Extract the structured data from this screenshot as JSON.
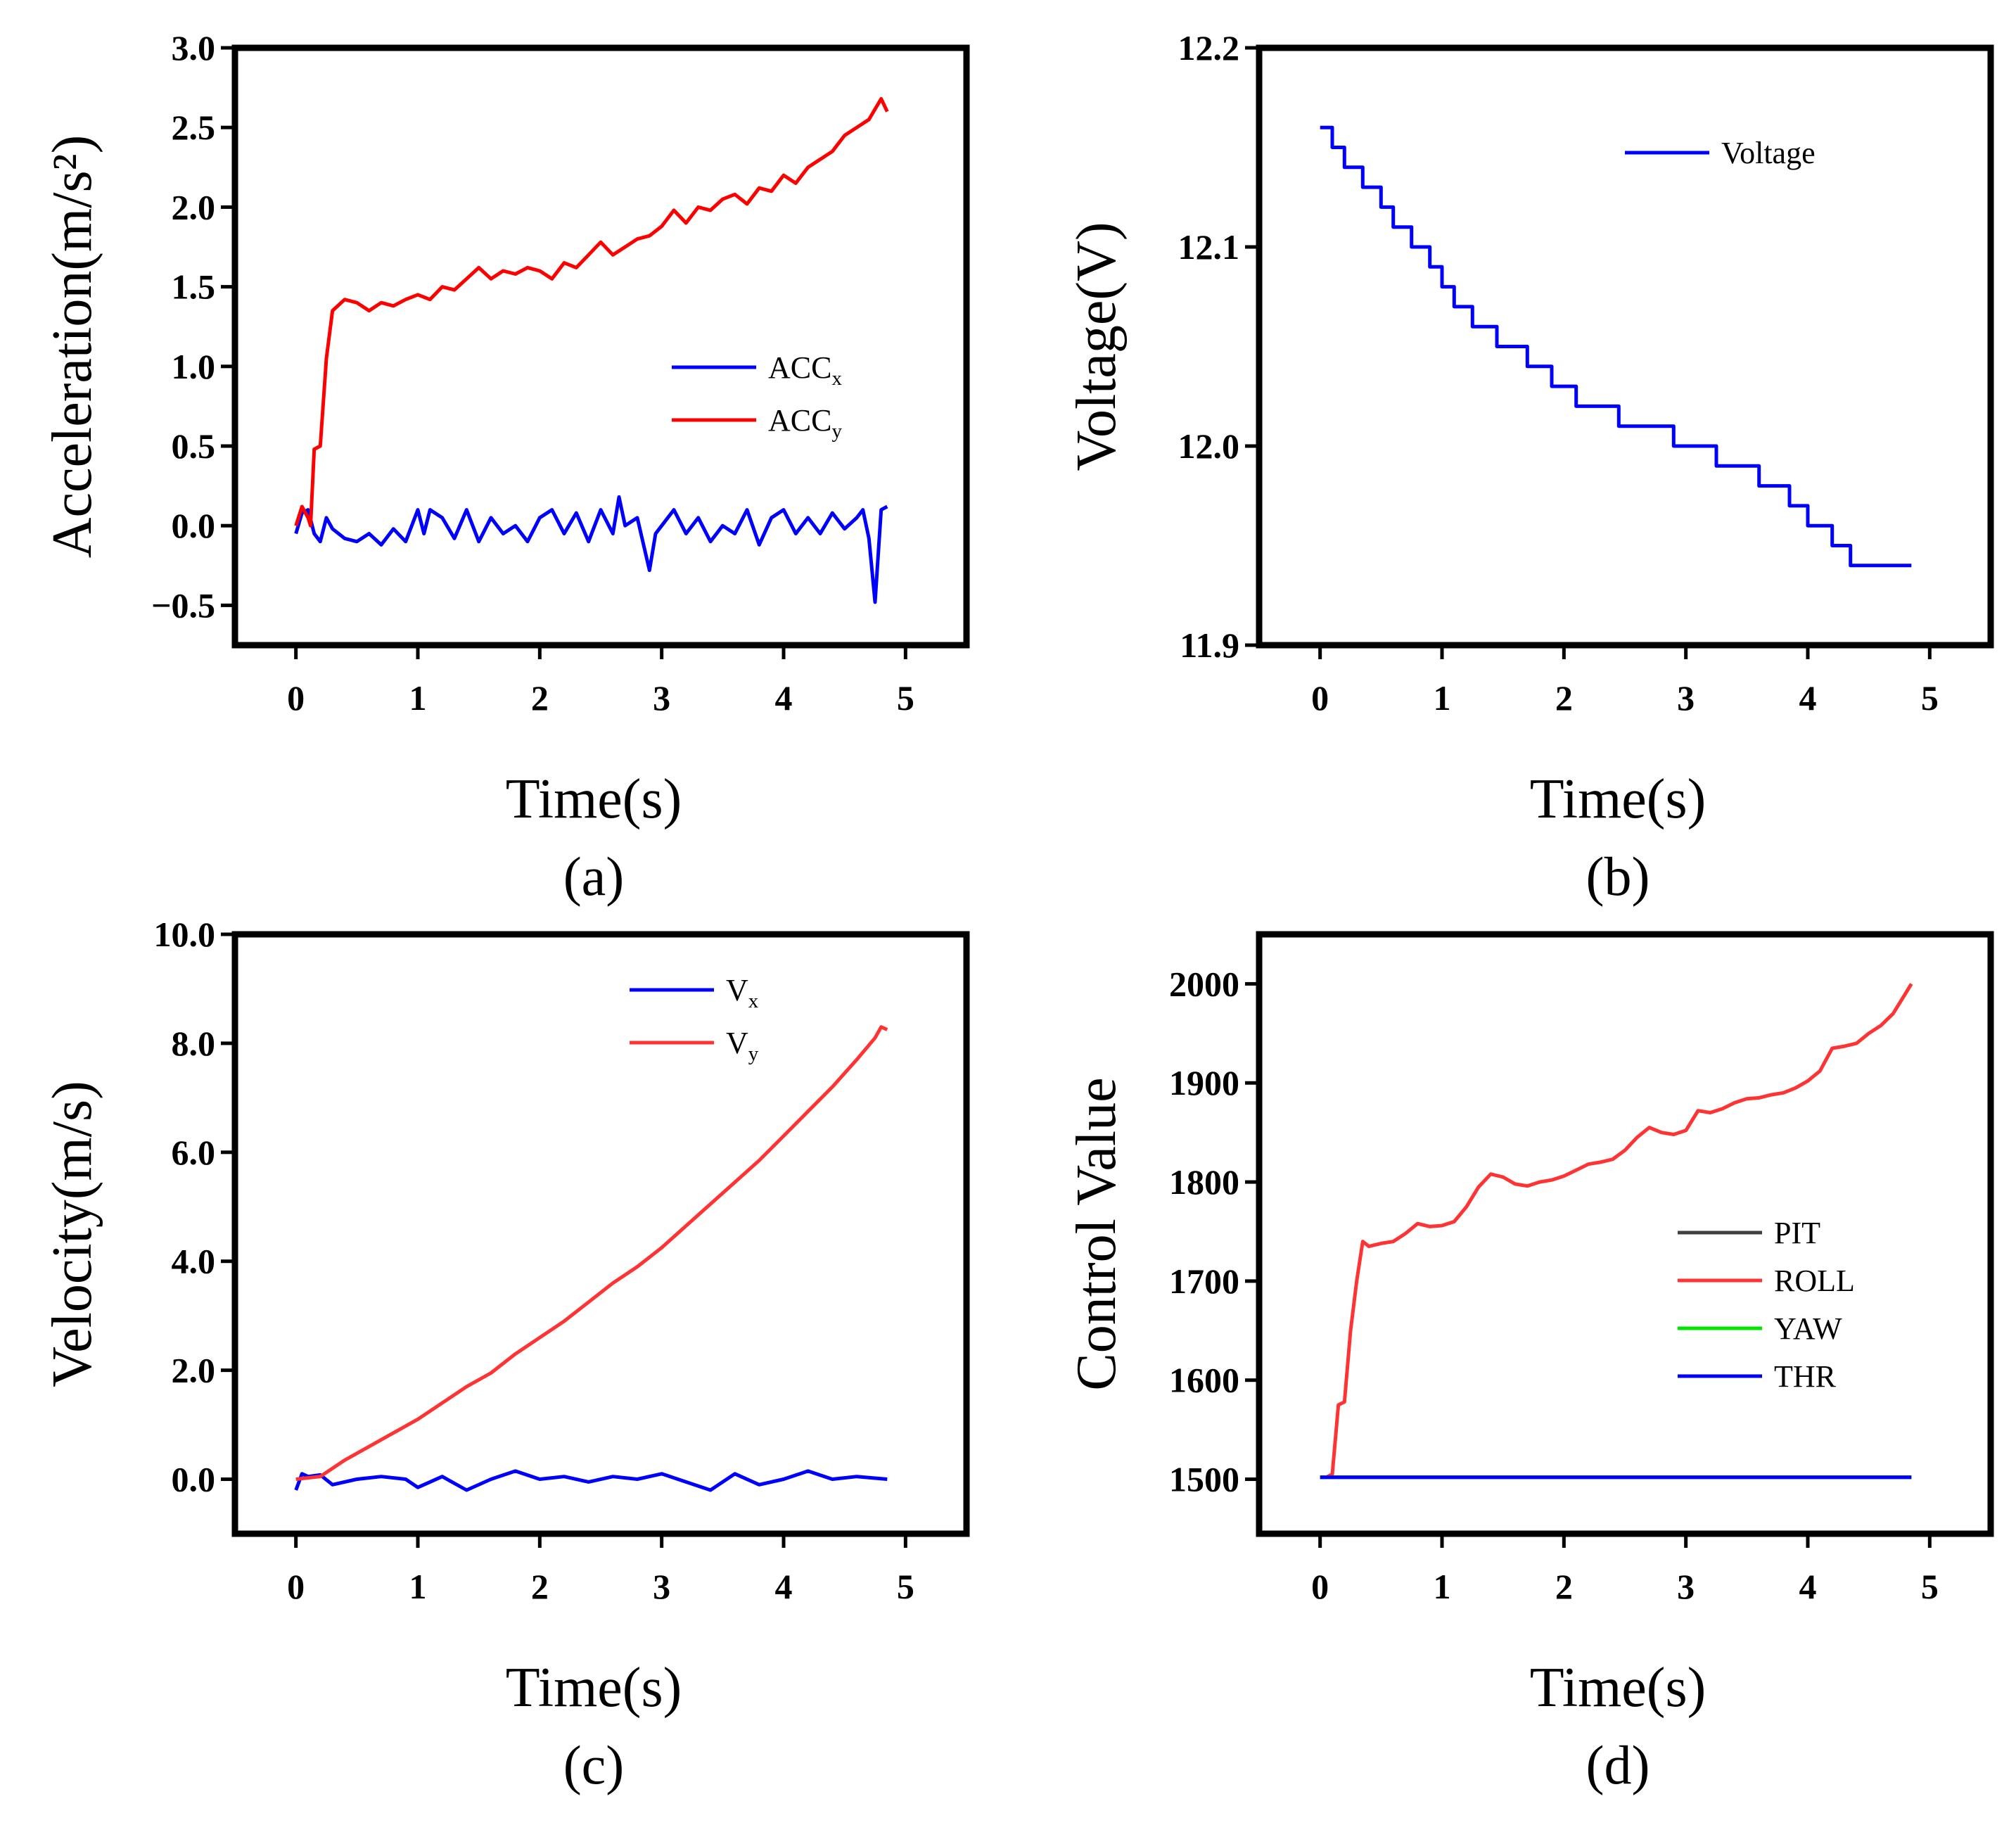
{
  "chart_data": [
    {
      "id": "a",
      "type": "line",
      "caption": "(a)",
      "xlabel": "Time(s)",
      "ylabel": "Acceleration(m/s²)",
      "xlim": [
        -0.5,
        5.5
      ],
      "ylim": [
        -0.75,
        3.0
      ],
      "xticks": [
        0,
        1,
        2,
        3,
        4,
        5
      ],
      "xtick_labels": [
        "0",
        "1",
        "2",
        "3",
        "4",
        "5"
      ],
      "yticks": [
        -0.5,
        0.0,
        0.5,
        1.0,
        1.5,
        2.0,
        2.5,
        3.0
      ],
      "ytick_labels": [
        "−0.5",
        "0.0",
        "0.5",
        "1.0",
        "1.5",
        "2.0",
        "2.5",
        "3.0"
      ],
      "legend_position": "center-right",
      "series": [
        {
          "name": "ACC",
          "sub": "x",
          "color": "#0000ff",
          "x": [
            0.0,
            0.05,
            0.1,
            0.15,
            0.2,
            0.25,
            0.3,
            0.4,
            0.5,
            0.6,
            0.7,
            0.8,
            0.9,
            1.0,
            1.05,
            1.1,
            1.2,
            1.3,
            1.4,
            1.5,
            1.6,
            1.7,
            1.8,
            1.9,
            2.0,
            2.1,
            2.2,
            2.3,
            2.4,
            2.5,
            2.6,
            2.65,
            2.7,
            2.8,
            2.9,
            2.95,
            3.0,
            3.1,
            3.2,
            3.3,
            3.4,
            3.5,
            3.6,
            3.7,
            3.8,
            3.9,
            4.0,
            4.1,
            4.2,
            4.3,
            4.4,
            4.5,
            4.6,
            4.65,
            4.7,
            4.75,
            4.8,
            4.85
          ],
          "y": [
            -0.05,
            0.08,
            0.1,
            -0.05,
            -0.1,
            0.05,
            -0.02,
            -0.08,
            -0.1,
            -0.05,
            -0.12,
            -0.02,
            -0.1,
            0.1,
            -0.05,
            0.1,
            0.05,
            -0.08,
            0.1,
            -0.1,
            0.05,
            -0.05,
            0.0,
            -0.1,
            0.05,
            0.1,
            -0.05,
            0.08,
            -0.1,
            0.1,
            -0.05,
            0.18,
            0.0,
            0.05,
            -0.28,
            -0.05,
            0.0,
            0.1,
            -0.05,
            0.05,
            -0.1,
            0.0,
            -0.05,
            0.1,
            -0.12,
            0.05,
            0.1,
            -0.05,
            0.05,
            -0.05,
            0.08,
            -0.02,
            0.05,
            0.1,
            -0.08,
            -0.48,
            0.1,
            0.12
          ]
        },
        {
          "name": "ACC",
          "sub": "y",
          "color": "#ff0000",
          "x": [
            0.0,
            0.05,
            0.1,
            0.12,
            0.15,
            0.2,
            0.25,
            0.3,
            0.4,
            0.5,
            0.6,
            0.7,
            0.8,
            0.9,
            1.0,
            1.1,
            1.2,
            1.3,
            1.4,
            1.5,
            1.6,
            1.7,
            1.8,
            1.9,
            2.0,
            2.1,
            2.2,
            2.3,
            2.4,
            2.5,
            2.6,
            2.7,
            2.8,
            2.9,
            3.0,
            3.1,
            3.2,
            3.3,
            3.4,
            3.5,
            3.6,
            3.7,
            3.8,
            3.9,
            4.0,
            4.1,
            4.2,
            4.3,
            4.4,
            4.5,
            4.6,
            4.7,
            4.8,
            4.85
          ],
          "y": [
            0.0,
            0.12,
            0.05,
            0.0,
            0.48,
            0.5,
            1.05,
            1.35,
            1.42,
            1.4,
            1.35,
            1.4,
            1.38,
            1.42,
            1.45,
            1.42,
            1.5,
            1.48,
            1.55,
            1.62,
            1.55,
            1.6,
            1.58,
            1.62,
            1.6,
            1.55,
            1.65,
            1.62,
            1.7,
            1.78,
            1.7,
            1.75,
            1.8,
            1.82,
            1.88,
            1.98,
            1.9,
            2.0,
            1.98,
            2.05,
            2.08,
            2.02,
            2.12,
            2.1,
            2.2,
            2.15,
            2.25,
            2.3,
            2.35,
            2.45,
            2.5,
            2.55,
            2.68,
            2.6
          ]
        }
      ]
    },
    {
      "id": "b",
      "type": "line",
      "caption": "(b)",
      "xlabel": "Time(s)",
      "ylabel": "Voltage(V)",
      "xlim": [
        -0.5,
        5.5
      ],
      "ylim": [
        11.9,
        12.2
      ],
      "xticks": [
        0,
        1,
        2,
        3,
        4,
        5
      ],
      "xtick_labels": [
        "0",
        "1",
        "2",
        "3",
        "4",
        "5"
      ],
      "yticks": [
        11.9,
        12.0,
        12.1,
        12.2
      ],
      "ytick_labels": [
        "11.9",
        "12.0",
        "12.1",
        "12.2"
      ],
      "legend_position": "top-right",
      "step": true,
      "series": [
        {
          "name": "Voltage",
          "sub": "",
          "color": "#0000ff",
          "x": [
            0.0,
            0.1,
            0.2,
            0.35,
            0.5,
            0.6,
            0.75,
            0.9,
            1.0,
            1.1,
            1.25,
            1.45,
            1.7,
            1.9,
            2.1,
            2.45,
            2.9,
            3.25,
            3.6,
            3.85,
            4.0,
            4.2,
            4.35,
            4.45,
            4.55,
            4.7,
            4.8,
            4.85
          ],
          "y": [
            12.16,
            12.15,
            12.14,
            12.13,
            12.12,
            12.11,
            12.1,
            12.09,
            12.08,
            12.07,
            12.06,
            12.05,
            12.04,
            12.03,
            12.02,
            12.01,
            12.0,
            11.99,
            11.98,
            11.97,
            11.96,
            11.95,
            11.94,
            11.94,
            11.94,
            11.94,
            11.94,
            11.94
          ]
        }
      ]
    },
    {
      "id": "c",
      "type": "line",
      "caption": "(c)",
      "xlabel": "Time(s)",
      "ylabel": "Velocity(m/s)",
      "xlim": [
        -0.5,
        5.5
      ],
      "ylim": [
        -1.0,
        10.0
      ],
      "xticks": [
        0,
        1,
        2,
        3,
        4,
        5
      ],
      "xtick_labels": [
        "0",
        "1",
        "2",
        "3",
        "4",
        "5"
      ],
      "yticks": [
        0.0,
        2.0,
        4.0,
        6.0,
        8.0,
        10.0
      ],
      "ytick_labels": [
        "0.0",
        "2.0",
        "4.0",
        "6.0",
        "8.0",
        "10.0"
      ],
      "legend_position": "top-right",
      "series": [
        {
          "name": "V",
          "sub": "x",
          "color": "#0000ff",
          "x": [
            0.0,
            0.05,
            0.1,
            0.2,
            0.3,
            0.5,
            0.7,
            0.9,
            1.0,
            1.2,
            1.4,
            1.6,
            1.8,
            2.0,
            2.2,
            2.4,
            2.6,
            2.8,
            3.0,
            3.2,
            3.4,
            3.6,
            3.8,
            4.0,
            4.2,
            4.4,
            4.6,
            4.85
          ],
          "y": [
            -0.2,
            0.1,
            0.05,
            0.08,
            -0.1,
            0.0,
            0.05,
            0.0,
            -0.15,
            0.05,
            -0.2,
            0.0,
            0.15,
            0.0,
            0.05,
            -0.05,
            0.05,
            0.0,
            0.1,
            -0.05,
            -0.2,
            0.1,
            -0.1,
            0.0,
            0.15,
            0.0,
            0.05,
            0.0
          ]
        },
        {
          "name": "V",
          "sub": "y",
          "color": "#ff3333",
          "x": [
            0.0,
            0.2,
            0.4,
            0.6,
            0.8,
            1.0,
            1.2,
            1.4,
            1.6,
            1.8,
            2.0,
            2.2,
            2.4,
            2.6,
            2.8,
            3.0,
            3.2,
            3.4,
            3.6,
            3.8,
            4.0,
            4.2,
            4.4,
            4.6,
            4.75,
            4.8,
            4.85
          ],
          "y": [
            0.0,
            0.05,
            0.35,
            0.6,
            0.85,
            1.1,
            1.4,
            1.7,
            1.95,
            2.3,
            2.6,
            2.9,
            3.25,
            3.6,
            3.9,
            4.25,
            4.65,
            5.05,
            5.45,
            5.85,
            6.3,
            6.75,
            7.2,
            7.7,
            8.1,
            8.3,
            8.25
          ]
        }
      ]
    },
    {
      "id": "d",
      "type": "line",
      "caption": "(d)",
      "xlabel": "Time(s)",
      "ylabel": "Control Value",
      "xlim": [
        -0.5,
        5.5
      ],
      "ylim": [
        1445,
        2050
      ],
      "xticks": [
        0,
        1,
        2,
        3,
        4,
        5
      ],
      "xtick_labels": [
        "0",
        "1",
        "2",
        "3",
        "4",
        "5"
      ],
      "yticks": [
        1500,
        1600,
        1700,
        1800,
        1900,
        2000
      ],
      "ytick_labels": [
        "1500",
        "1600",
        "1700",
        "1800",
        "1900",
        "2000"
      ],
      "legend_position": "center-right",
      "series": [
        {
          "name": "PIT",
          "sub": "",
          "color": "#404040",
          "x": [
            0.0,
            4.85
          ],
          "y": [
            1502,
            1502
          ]
        },
        {
          "name": "ROLL",
          "sub": "",
          "color": "#ff3333",
          "x": [
            0.0,
            0.05,
            0.1,
            0.15,
            0.2,
            0.25,
            0.3,
            0.35,
            0.4,
            0.5,
            0.6,
            0.7,
            0.8,
            0.9,
            1.0,
            1.1,
            1.2,
            1.3,
            1.4,
            1.5,
            1.6,
            1.7,
            1.8,
            1.9,
            2.0,
            2.1,
            2.2,
            2.3,
            2.4,
            2.5,
            2.6,
            2.7,
            2.8,
            2.9,
            3.0,
            3.1,
            3.2,
            3.3,
            3.4,
            3.5,
            3.6,
            3.7,
            3.8,
            3.9,
            4.0,
            4.1,
            4.2,
            4.3,
            4.4,
            4.5,
            4.6,
            4.7,
            4.8,
            4.85
          ],
          "y": [
            1502,
            1502,
            1505,
            1575,
            1578,
            1650,
            1700,
            1740,
            1735,
            1738,
            1740,
            1748,
            1758,
            1755,
            1756,
            1760,
            1775,
            1795,
            1808,
            1805,
            1798,
            1796,
            1800,
            1802,
            1806,
            1812,
            1818,
            1820,
            1823,
            1832,
            1845,
            1855,
            1850,
            1848,
            1852,
            1872,
            1870,
            1874,
            1880,
            1884,
            1885,
            1888,
            1890,
            1895,
            1902,
            1912,
            1935,
            1937,
            1940,
            1950,
            1958,
            1970,
            1990,
            2000
          ]
        },
        {
          "name": "YAW",
          "sub": "",
          "color": "#00e600",
          "x": [
            0.0,
            4.85
          ],
          "y": [
            1502,
            1502
          ]
        },
        {
          "name": "THR",
          "sub": "",
          "color": "#0000ff",
          "x": [
            0.0,
            4.85
          ],
          "y": [
            1502,
            1502
          ]
        }
      ]
    }
  ]
}
